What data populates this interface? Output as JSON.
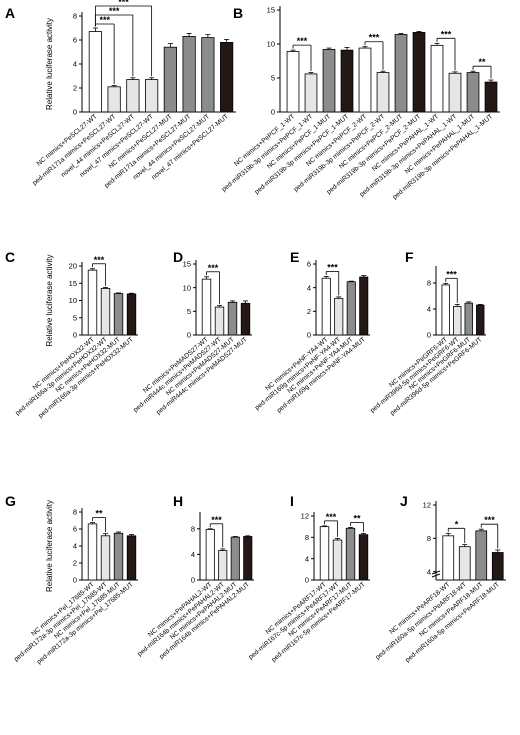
{
  "ylabel": "Relative luciferase activity",
  "colors": {
    "white": "#ffffff",
    "light": "#e6e6e6",
    "mid": "#8c8c8c",
    "dark": "#231815",
    "axis": "#000000"
  },
  "chart_data": [
    {
      "panel": "A",
      "type": "bar",
      "ylim": [
        0,
        8
      ],
      "yticks": [
        0,
        2,
        4,
        6,
        8
      ],
      "categories": [
        "NC mimics+PeSCL27-WT",
        "ped-miR171a mimics+PeSCL27-WT",
        "novel_44 mimics+PeSCL27-WT",
        "novel_47 mimics+PeSCL27-WT",
        "NC mimics+PeSCL27-MUT",
        "ped-miR171a mimics+PeSCL27-MUT",
        "novel_44 mimics+PeSCL27-MUT",
        "novel_47 mimics+PeSCL27-MUT"
      ],
      "values": [
        6.7,
        2.1,
        2.7,
        2.7,
        5.4,
        6.3,
        6.2,
        5.8
      ],
      "errors": [
        0.3,
        0.1,
        0.15,
        0.15,
        0.3,
        0.25,
        0.25,
        0.25
      ],
      "fills": [
        "white",
        "light",
        "light",
        "light",
        "mid",
        "mid",
        "mid",
        "dark"
      ],
      "sig": [
        {
          "from": 0,
          "to": 1,
          "label": "***"
        },
        {
          "from": 0,
          "to": 2,
          "label": "***"
        },
        {
          "from": 0,
          "to": 3,
          "label": "***"
        }
      ]
    },
    {
      "panel": "B",
      "type": "bar",
      "ylim": [
        0,
        15
      ],
      "yticks": [
        0,
        5,
        10,
        15
      ],
      "categories": [
        "NC mimics+PePCF_1-WT",
        "ped-miR319b-3p mimics+PePCF_1-WT",
        "NC mimics+PePCF_1-MUT",
        "ped-miR319b-3p mimics+PePCF_1-MUT",
        "NC mimics+PePCF_2-WT",
        "ped-miR319b-3p mimics+PePCF_2-WT",
        "NC mimics+PePCF_2-MUT",
        "ped-miR319b-3p mimics+PePCF_2-MUT",
        "NC mimics+PePAHAL_1-WT",
        "ped-miR319b-3p mimics+PePAHAL_1-WT",
        "NC mimics+PePAHAL_1-MUT",
        "ped-miR319b-3p mimics+PePAHAL_1-MUT"
      ],
      "values": [
        8.9,
        5.6,
        9.2,
        9.1,
        9.4,
        5.8,
        11.4,
        11.7,
        9.8,
        5.7,
        5.8,
        4.4
      ],
      "errors": [
        0.2,
        0.2,
        0.2,
        0.4,
        0.2,
        0.2,
        0.15,
        0.15,
        0.3,
        0.2,
        0.2,
        0.3
      ],
      "fills": [
        "white",
        "light",
        "mid",
        "dark",
        "white",
        "light",
        "mid",
        "dark",
        "white",
        "light",
        "mid",
        "dark"
      ],
      "sig": [
        {
          "from": 0,
          "to": 1,
          "label": "***"
        },
        {
          "from": 4,
          "to": 5,
          "label": "***"
        },
        {
          "from": 8,
          "to": 9,
          "label": "***"
        },
        {
          "from": 10,
          "to": 11,
          "label": "**"
        }
      ]
    },
    {
      "panel": "C",
      "type": "bar",
      "ylim": [
        0,
        20
      ],
      "yticks": [
        0,
        5,
        10,
        15,
        20
      ],
      "categories": [
        "NC mimics+PeHOX32-WT",
        "ped-miR166a-3p mimics+PeHOX32-WT",
        "NC mimics+PeHOX32-MUT",
        "ped-miR166a-3p mimics+PeHOX32-MUT"
      ],
      "values": [
        18.8,
        13.5,
        12.0,
        11.9
      ],
      "errors": [
        0.4,
        0.3,
        0.2,
        0.2
      ],
      "fills": [
        "white",
        "light",
        "mid",
        "dark"
      ],
      "sig": [
        {
          "from": 0,
          "to": 1,
          "label": "***"
        }
      ]
    },
    {
      "panel": "D",
      "type": "bar",
      "ylim": [
        0,
        15
      ],
      "yticks": [
        0,
        5,
        10,
        15
      ],
      "categories": [
        "NC mimics+PeMADS27-WT",
        "ped-miR444c mimics+PeMADS27-WT",
        "NC mimics+PeMADS27-MUT",
        "ped-miR444c mimics+PeMADS27-MUT"
      ],
      "values": [
        11.8,
        5.9,
        6.9,
        6.7
      ],
      "errors": [
        0.5,
        0.3,
        0.3,
        0.5
      ],
      "fills": [
        "white",
        "light",
        "mid",
        "dark"
      ],
      "sig": [
        {
          "from": 0,
          "to": 1,
          "label": "***"
        }
      ]
    },
    {
      "panel": "E",
      "type": "bar",
      "ylim": [
        0,
        6
      ],
      "yticks": [
        0,
        2,
        4,
        6
      ],
      "categories": [
        "NC mimics+PeNF-YA4-WT",
        "ped-miR169g mimics+PeNF-YA4-WT",
        "NC mimics+PeNF-YA4-MUT",
        "ped-miR169g mimics+PeNF-YA4-MUT"
      ],
      "values": [
        4.8,
        3.1,
        4.5,
        4.9
      ],
      "errors": [
        0.15,
        0.12,
        0.05,
        0.12
      ],
      "fills": [
        "white",
        "light",
        "mid",
        "dark"
      ],
      "sig": [
        {
          "from": 0,
          "to": 1,
          "label": "***"
        }
      ]
    },
    {
      "panel": "F",
      "type": "bar",
      "ylim": [
        0,
        10
      ],
      "yticks": [
        0,
        4,
        8
      ],
      "categories": [
        "NC mimics+PeGRF6-WT",
        "ped-miR396d-5p mimics+PeGRF6-WT",
        "NC mimics+PeGRF6-MUT",
        "ped-miR396d-5p mimics+PeGRF6-MUT"
      ],
      "values": [
        7.7,
        4.4,
        4.9,
        4.6
      ],
      "errors": [
        0.25,
        0.3,
        0.2,
        0.1
      ],
      "fills": [
        "white",
        "light",
        "mid",
        "dark"
      ],
      "sig": [
        {
          "from": 0,
          "to": 1,
          "label": "***"
        }
      ]
    },
    {
      "panel": "G",
      "type": "bar",
      "ylim": [
        0,
        8
      ],
      "yticks": [
        0,
        2,
        4,
        6,
        8
      ],
      "categories": [
        "NC mimics+Pel_17685-WT",
        "ped-miR172a-3p mimics+Pel_17685-WT",
        "NC mimics+Pel_17685-MUT",
        "ped-miR172a-3p mimics+Pel_17685-MUT"
      ],
      "values": [
        6.6,
        5.2,
        5.5,
        5.2
      ],
      "errors": [
        0.15,
        0.25,
        0.15,
        0.15
      ],
      "fills": [
        "white",
        "light",
        "mid",
        "dark"
      ],
      "sig": [
        {
          "from": 0,
          "to": 1,
          "label": "**"
        }
      ]
    },
    {
      "panel": "H",
      "type": "bar",
      "ylim": [
        0,
        10
      ],
      "yticks": [
        0,
        4,
        8
      ],
      "categories": [
        "NC mimics+PePAHAL2-WT",
        "ped-miR164b mimics+PePAHAL2-WT",
        "NC mimics+PePAHAL2-MUT",
        "ped-miR164b mimics+PePAHAL2-MUT"
      ],
      "values": [
        7.9,
        4.6,
        6.7,
        6.8
      ],
      "errors": [
        0.1,
        0.25,
        0.1,
        0.1
      ],
      "fills": [
        "white",
        "light",
        "mid",
        "dark"
      ],
      "sig": [
        {
          "from": 0,
          "to": 1,
          "label": "***"
        }
      ]
    },
    {
      "panel": "I",
      "type": "bar",
      "ylim": [
        0,
        12
      ],
      "yticks": [
        0,
        4,
        8,
        12
      ],
      "categories": [
        "NC mimics+PeARF17-WT",
        "ped-miR167c-5p mimics+PeARF17-WT",
        "NC mimics+PeARF17-MUT",
        "ped-miR167c-5p mimics+PeARF17-MUT"
      ],
      "values": [
        10.0,
        7.5,
        9.7,
        8.5
      ],
      "errors": [
        0.15,
        0.3,
        0.15,
        0.25
      ],
      "fills": [
        "white",
        "light",
        "mid",
        "dark"
      ],
      "sig": [
        {
          "from": 0,
          "to": 1,
          "label": "***"
        },
        {
          "from": 2,
          "to": 3,
          "label": "**"
        }
      ]
    },
    {
      "panel": "J",
      "type": "bar",
      "ylim": [
        3,
        12
      ],
      "yticks": [
        4,
        8,
        12
      ],
      "axis_break": true,
      "categories": [
        "NC mimics+PeARF18-WT",
        "ped-miR160a-5p mimics+PeARF18-WT",
        "NC mimics+PeARF18-MUT",
        "ped-miR160a-5p mimics+PeARF18-MUT"
      ],
      "values": [
        8.3,
        7.0,
        8.9,
        6.3
      ],
      "errors": [
        0.3,
        0.25,
        0.2,
        0.3
      ],
      "fills": [
        "white",
        "light",
        "mid",
        "dark"
      ],
      "sig": [
        {
          "from": 0,
          "to": 1,
          "label": "*"
        },
        {
          "from": 2,
          "to": 3,
          "label": "***"
        }
      ]
    }
  ]
}
